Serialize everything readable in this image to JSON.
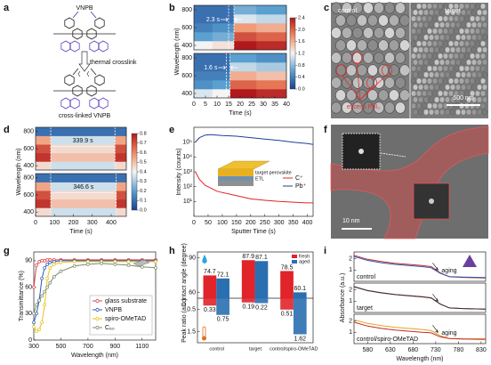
{
  "panel_labels": [
    "a",
    "b",
    "c",
    "d",
    "e",
    "f",
    "g",
    "h",
    "i"
  ],
  "structure": {
    "top_label": "VNPB",
    "arrow_label": "thermal crosslink",
    "bottom_label": "cross-linked VNPB"
  },
  "sem": {
    "left_label": "control",
    "right_label": "target",
    "annotation": "excess PbI₂",
    "scale_bar": "500 nm"
  },
  "tem": {
    "scale_bar": "10 nm"
  },
  "chart_data": [
    {
      "type": "heatmap",
      "xlabel": "Time (s)",
      "ylabel": "Wavelength (nm)",
      "xlim": [
        0,
        40
      ],
      "xticks": [
        0,
        5,
        10,
        15,
        20,
        25,
        30,
        35,
        40
      ],
      "ylim": [
        350,
        850
      ],
      "yticks": [
        400,
        600,
        800
      ],
      "clim": [
        0,
        2.4
      ],
      "cticks": [
        {
          "value": 0,
          "label": "0.0"
        },
        0.4,
        0.8,
        1.2,
        1.6,
        {
          "value": 2,
          "label": "2.0"
        },
        2.4
      ],
      "subplots": [
        {
          "annotation": "2.3 s",
          "interval": [
            15,
            17.3
          ],
          "x_edges": [
            0,
            8,
            17.3,
            27,
            40
          ],
          "y_edges": [
            350,
            450,
            550,
            650,
            750,
            850
          ],
          "z": [
            [
              1.2,
              1.3,
              2.4,
              2.3
            ],
            [
              0.6,
              0.7,
              2.1,
              2.0
            ],
            [
              0.4,
              0.5,
              1.7,
              1.6
            ],
            [
              0.3,
              0.3,
              1.1,
              1.0
            ],
            [
              0.3,
              0.3,
              0.7,
              0.6
            ]
          ]
        },
        {
          "annotation": "1.6 s",
          "interval": [
            14,
            15.6
          ],
          "x_edges": [
            0,
            8,
            15.6,
            27,
            40
          ],
          "y_edges": [
            350,
            450,
            550,
            650,
            750,
            850
          ],
          "z": [
            [
              1.1,
              1.2,
              2.4,
              2.3
            ],
            [
              0.5,
              0.6,
              2.0,
              1.9
            ],
            [
              0.4,
              0.4,
              1.6,
              1.5
            ],
            [
              0.3,
              0.3,
              1.0,
              0.9
            ],
            [
              0.3,
              0.3,
              0.6,
              0.5
            ]
          ]
        }
      ]
    },
    {
      "type": "heatmap",
      "xlabel": "Time (s)",
      "ylabel": "Wavelength (nm)",
      "xlim": [
        0,
        480
      ],
      "xticks": [
        0,
        100,
        200,
        300,
        400
      ],
      "ylim": [
        350,
        850
      ],
      "yticks": [
        400,
        600,
        800
      ],
      "clim": [
        0,
        0.8
      ],
      "cticks": [
        {
          "value": 0,
          "label": "0.0"
        },
        0.1,
        0.2,
        0.3,
        0.4,
        0.5,
        0.6,
        0.7,
        0.8
      ],
      "subplots": [
        {
          "annotation": "339.9 s",
          "interval": [
            80,
            420
          ],
          "x_edges": [
            0,
            80,
            420,
            480
          ],
          "y_edges": [
            350,
            450,
            550,
            650,
            750,
            850
          ],
          "z": [
            [
              0.45,
              0.35,
              0.45
            ],
            [
              0.75,
              0.5,
              0.75
            ],
            [
              0.7,
              0.45,
              0.7
            ],
            [
              0.55,
              0.35,
              0.55
            ],
            [
              0.1,
              0.1,
              0.1
            ]
          ]
        },
        {
          "annotation": "346.6 s",
          "interval": [
            80,
            426.6
          ],
          "x_edges": [
            0,
            80,
            426.6,
            480
          ],
          "y_edges": [
            350,
            450,
            550,
            650,
            750,
            850
          ],
          "z": [
            [
              0.45,
              0.35,
              0.45
            ],
            [
              0.75,
              0.5,
              0.75
            ],
            [
              0.7,
              0.45,
              0.7
            ],
            [
              0.55,
              0.35,
              0.55
            ],
            [
              0.1,
              0.1,
              0.1
            ]
          ]
        }
      ]
    },
    {
      "type": "line",
      "xlabel": "Sputter Time (s)",
      "ylabel": "Intensity (counts)",
      "log": true,
      "xlim": [
        0,
        420
      ],
      "xticks": [
        0,
        50,
        100,
        150,
        200,
        250,
        300,
        350,
        400
      ],
      "ylim": [
        1,
        1000000
      ],
      "yticks": [
        {
          "value": 10,
          "label": "10¹"
        },
        {
          "value": 100,
          "label": "10²"
        },
        {
          "value": 1000,
          "label": "10³"
        },
        {
          "value": 10000,
          "label": "10⁴"
        },
        {
          "value": 100000,
          "label": "10⁵"
        }
      ],
      "x": [
        5,
        20,
        40,
        60,
        80,
        100,
        150,
        200,
        250,
        300,
        350,
        400,
        420
      ],
      "series": [
        {
          "name": "C⁺",
          "color": "#e0242a",
          "values": [
            1000,
            300,
            120,
            80,
            50,
            40,
            25,
            15,
            12,
            10,
            9,
            8,
            8
          ]
        },
        {
          "name": "Pb⁺",
          "color": "#1f3f9a",
          "values": [
            100000,
            200000,
            300000,
            320000,
            300000,
            280000,
            250000,
            200000,
            160000,
            130000,
            100000,
            80000,
            70000
          ]
        }
      ],
      "inset_labels": [
        "target perovskite",
        "ETL"
      ]
    },
    {
      "type": "line",
      "xlabel": "Wavelength (nm)",
      "ylabel": "Transmittance (%)",
      "xlim": [
        300,
        1200
      ],
      "xticks": [
        300,
        500,
        700,
        900,
        1100
      ],
      "ylim": [
        0,
        100
      ],
      "yticks": [
        0,
        30,
        60,
        90
      ],
      "x": [
        300,
        320,
        340,
        360,
        380,
        400,
        420,
        450,
        500,
        600,
        700,
        800,
        900,
        1000,
        1100,
        1200
      ],
      "series": [
        {
          "name": "glass substrate",
          "color": "#e0424a",
          "values": [
            60,
            85,
            89,
            90,
            90,
            91,
            91,
            91,
            91,
            91,
            91,
            91,
            91,
            91,
            91,
            91
          ]
        },
        {
          "name": "VNPB",
          "color": "#2a5ab0",
          "values": [
            20,
            30,
            45,
            70,
            82,
            86,
            88,
            89,
            90,
            90,
            90,
            90,
            90,
            90,
            90,
            90
          ]
        },
        {
          "name": "spiro-OMeTAD",
          "color": "#e8c21a",
          "values": [
            15,
            10,
            12,
            20,
            40,
            70,
            82,
            86,
            88,
            89,
            89,
            89,
            89,
            89,
            89,
            89
          ]
        },
        {
          "name": "C₆₀",
          "color": "#7a8a6a",
          "values": [
            30,
            40,
            45,
            50,
            55,
            60,
            65,
            72,
            78,
            84,
            86,
            87,
            86,
            85,
            83,
            82
          ]
        }
      ]
    },
    {
      "type": "bar",
      "ylabel": "Contact angle (degree)",
      "y2label": "Peak ratio (a.u.)",
      "categories": [
        "control",
        "target",
        "control/spiro-OMeTAD"
      ],
      "ylim": [
        55,
        95
      ],
      "yticks": [
        60,
        90
      ],
      "y2lim": [
        0,
        2
      ],
      "y2ticks": [
        0.5,
        1.5
      ],
      "series": [
        {
          "name": "fresh",
          "color": "#e0242a",
          "values": [
            74.7,
            87.9,
            78.5
          ]
        },
        {
          "name": "aged",
          "color": "#2a6fb0",
          "values": [
            72.1,
            87.1,
            60.1
          ]
        },
        {
          "color": "#e0242a",
          "axis": "y2",
          "values": [
            0.33,
            0.19,
            0.51
          ]
        },
        {
          "color": "#2a6fb0",
          "axis": "y2",
          "values": [
            0.75,
            0.22,
            1.62
          ]
        }
      ]
    },
    {
      "type": "line",
      "xlabel": "Wavelength (nm)",
      "ylabel": "Absorbance (a.u.)",
      "xlim": [
        550,
        840
      ],
      "xticks": [
        580,
        630,
        680,
        730,
        780,
        830
      ],
      "x": [
        550,
        580,
        610,
        640,
        670,
        700,
        720,
        740,
        760,
        790,
        840
      ],
      "subplots": [
        {
          "label": "control",
          "annotation": "aging",
          "ylim": [
            0,
            2.6
          ],
          "yticks": [
            1,
            2
          ],
          "series": [
            {
              "color": "#c0282a",
              "values": [
                2.3,
                1.95,
                1.75,
                1.6,
                1.5,
                1.4,
                1.3,
                0.75,
                0.4,
                0.35,
                0.3
              ]
            },
            {
              "color": "#2a5aa8",
              "values": [
                2.2,
                1.85,
                1.65,
                1.5,
                1.4,
                1.3,
                1.2,
                0.7,
                0.42,
                0.38,
                0.33
              ]
            }
          ]
        },
        {
          "label": "target",
          "ylim": [
            0,
            2.6
          ],
          "yticks": [
            1,
            2
          ],
          "series": [
            {
              "color": "#c0282a",
              "values": [
                2.3,
                1.95,
                1.75,
                1.6,
                1.5,
                1.4,
                1.3,
                0.75,
                0.4,
                0.35,
                0.3
              ]
            },
            {
              "color": "#333333",
              "values": [
                2.28,
                1.93,
                1.73,
                1.58,
                1.48,
                1.38,
                1.28,
                0.74,
                0.4,
                0.35,
                0.3
              ]
            }
          ]
        },
        {
          "label": "control/spiro-OMeTAD",
          "annotation": "aging",
          "ylim": [
            0,
            2.6
          ],
          "yticks": [
            1,
            2
          ],
          "series": [
            {
              "color": "#e8a020",
              "values": [
                2.1,
                1.8,
                1.6,
                1.45,
                1.35,
                1.25,
                1.15,
                0.7,
                0.45,
                0.4,
                0.35
              ]
            },
            {
              "color": "#c0282a",
              "values": [
                1.9,
                1.55,
                1.35,
                1.2,
                1.1,
                1.0,
                0.95,
                0.6,
                0.45,
                0.42,
                0.4
              ]
            }
          ]
        }
      ]
    }
  ]
}
